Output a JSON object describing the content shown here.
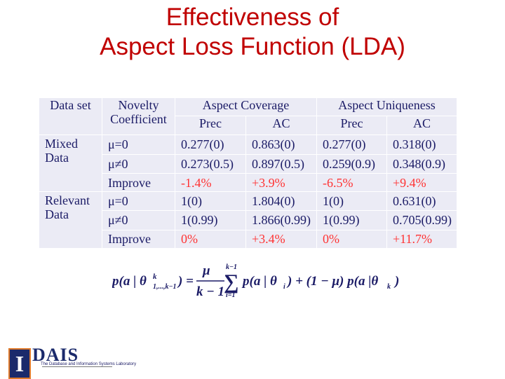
{
  "title": {
    "line1": "Effectiveness of",
    "line2": "Aspect Loss Function (LDA)"
  },
  "table": {
    "headers": {
      "dataset": "Data set",
      "novelty_line1": "Novelty",
      "novelty_line2": "Coefficient",
      "coverage": "Aspect Coverage",
      "uniqueness": "Aspect Uniqueness",
      "prec": "Prec",
      "ac": "AC"
    },
    "groups": [
      {
        "name_line1": "Mixed",
        "name_line2": "Data",
        "rows": [
          {
            "coef": "μ=0",
            "cov_prec": "0.277(0)",
            "cov_ac": "0.863(0)",
            "uni_prec": "0.277(0)",
            "uni_ac": "0.318(0)"
          },
          {
            "coef": "μ≠0",
            "cov_prec": "0.273(0.5)",
            "cov_ac": "0.897(0.5)",
            "uni_prec": "0.259(0.9)",
            "uni_ac": "0.348(0.9)"
          },
          {
            "coef": "Improve",
            "cov_prec": "-1.4%",
            "cov_ac": "+3.9%",
            "uni_prec": "-6.5%",
            "uni_ac": "+9.4%"
          }
        ]
      },
      {
        "name_line1": "Relevant",
        "name_line2": "Data",
        "rows": [
          {
            "coef": "μ=0",
            "cov_prec": "1(0)",
            "cov_ac": "1.804(0)",
            "uni_prec": "1(0)",
            "uni_ac": "0.631(0)"
          },
          {
            "coef": "μ≠0",
            "cov_prec": "1(0.99)",
            "cov_ac": "1.866(0.99)",
            "uni_prec": "1(0.99)",
            "uni_ac": "0.705(0.99)"
          },
          {
            "coef": "Improve",
            "cov_prec": "0%",
            "cov_ac": "+3.4%",
            "uni_prec": "0%",
            "uni_ac": "+11.7%"
          }
        ]
      }
    ]
  },
  "formula": {
    "lhs": "p(a | θ",
    "lhs_sup": "k",
    "lhs_sub": "1,...,k−1",
    "lhs_close": ") =",
    "frac_num": "μ",
    "frac_den": "k − 1",
    "sum_top": "k−1",
    "sum_sign": "∑",
    "sum_bottom": "i=1",
    "rhs": "p(a | θ",
    "rhs_sub": "i",
    "rhs_mid": ") + (1 − μ) p(a |θ",
    "rhs_sub2": "k",
    "rhs_close": ")"
  },
  "logo": {
    "letter": "I",
    "name": "DAIS",
    "subtitle": "The Database and Information Systems Laboratory"
  },
  "colors": {
    "title": "#c00000",
    "table_bg": "#ebebf5",
    "table_text": "#1b1b66",
    "improve_text": "#ff3333"
  }
}
